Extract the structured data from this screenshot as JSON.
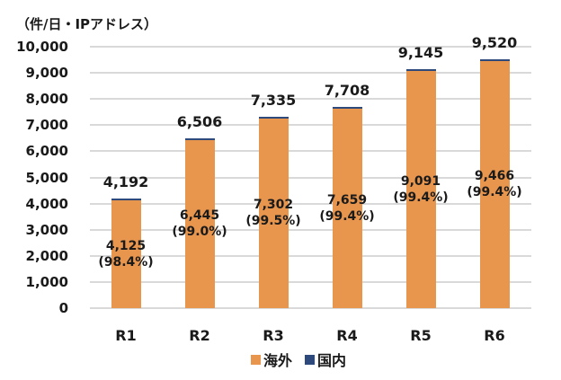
{
  "chart_data": {
    "type": "bar",
    "stacked": true,
    "title": "",
    "unit_label": "（件/日・IPアドレス）",
    "xlabel": "",
    "ylabel": "（件/日・IPアドレス）",
    "ylim": [
      0,
      10000
    ],
    "yticks": [
      0,
      1000,
      2000,
      3000,
      4000,
      5000,
      6000,
      7000,
      8000,
      9000,
      10000
    ],
    "ytick_labels": [
      "0",
      "1,000",
      "2,000",
      "3,000",
      "4,000",
      "5,000",
      "6,000",
      "7,000",
      "8,000",
      "9,000",
      "10,000"
    ],
    "grid": true,
    "legend_position": "bottom",
    "categories": [
      "R1",
      "R2",
      "R3",
      "R4",
      "R5",
      "R6"
    ],
    "series": [
      {
        "name": "海外",
        "color": "#E8964E",
        "values": [
          4125,
          6445,
          7302,
          7659,
          9091,
          9466
        ],
        "labels": [
          "4,125\n(98.4%)",
          "6,445\n(99.0%)",
          "7,302\n(99.5%)",
          "7,659\n(99.4%)",
          "9,091\n(99.4%)",
          "9,466\n(99.4%)"
        ]
      },
      {
        "name": "国内",
        "color": "#2E4A7D",
        "values": [
          67,
          61,
          33,
          49,
          54,
          54
        ]
      }
    ],
    "totals": [
      4192,
      6506,
      7335,
      7708,
      9145,
      9520
    ],
    "total_labels": [
      "4,192",
      "6,506",
      "7,335",
      "7,708",
      "9,145",
      "9,520"
    ]
  },
  "legend": {
    "overseas": "海外",
    "domestic": "国内"
  }
}
